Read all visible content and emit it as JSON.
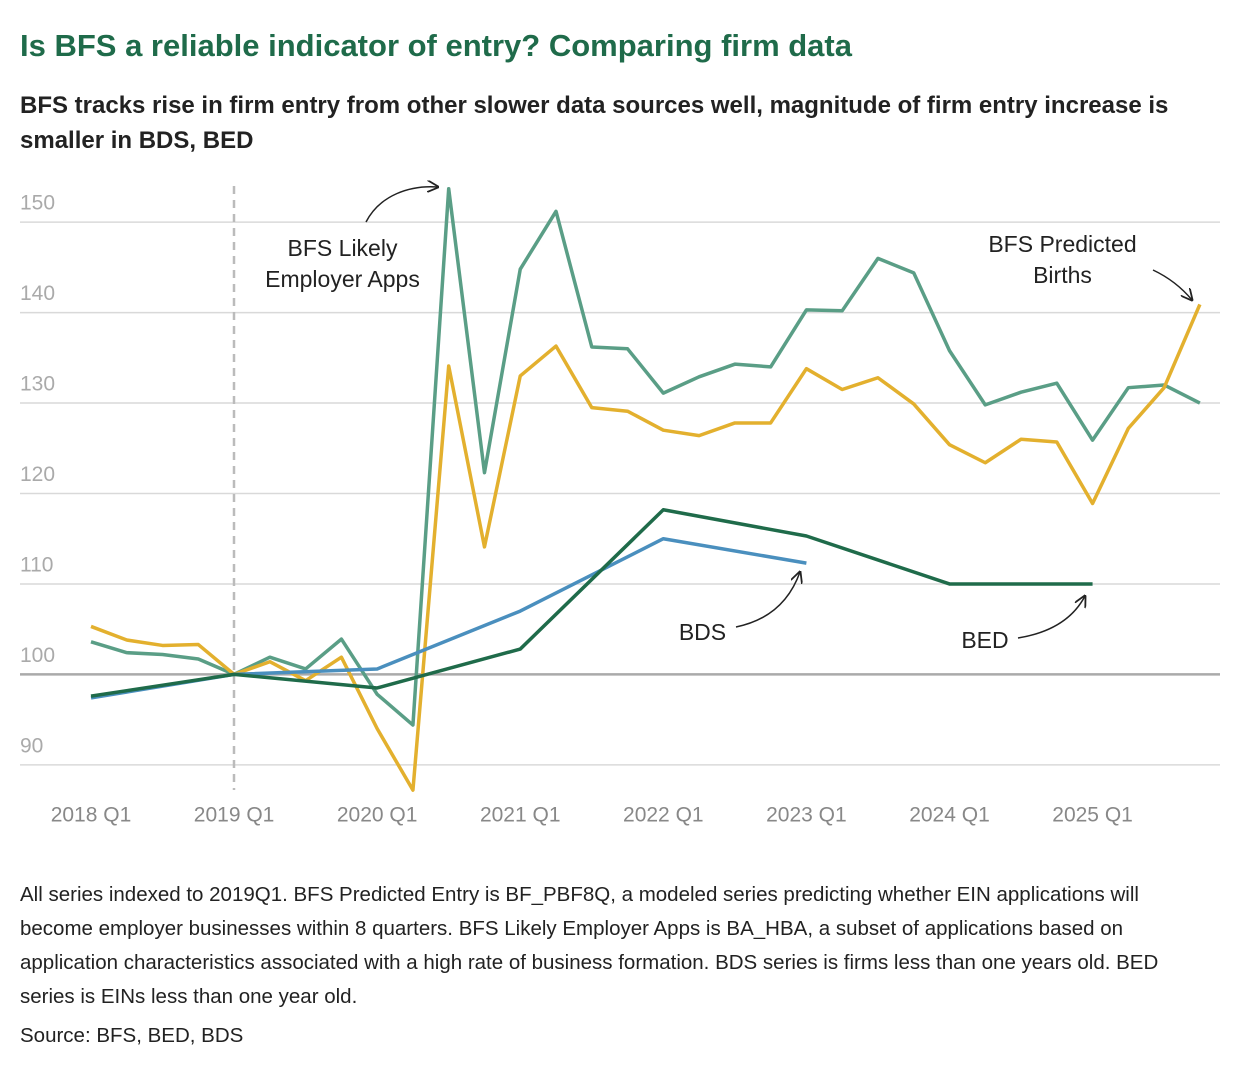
{
  "chart_data": {
    "type": "line",
    "title": "Is BFS a reliable indicator of entry? Comparing firm data",
    "subtitle": "BFS tracks rise in firm entry from other slower data sources well, magnitude of firm entry increase is smaller in BDS, BED",
    "note": "All series indexed to 2019Q1. BFS Predicted Entry is BF_PBF8Q, a modeled series predicting whether EIN applications will become employer businesses within 8 quarters. BFS Likely Employer Apps is BA_HBA, a subset of applications based on application characteristics associated with a high rate of business formation. BDS series is firms less than one years old. BED series is EINs less than one year old.",
    "source": "Source: BFS, BED, BDS",
    "categories": [
      "2018 Q1",
      null,
      null,
      null,
      "2019 Q1",
      null,
      null,
      null,
      "2020 Q1",
      null,
      null,
      null,
      "2021 Q1",
      null,
      null,
      null,
      "2022 Q1",
      null,
      null,
      null,
      "2023 Q1",
      null,
      null,
      null,
      "2024 Q1",
      null,
      null,
      null,
      "2025 Q1",
      null,
      null,
      null
    ],
    "ylim": [
      86,
      154
    ],
    "yticks": [
      90,
      100,
      110,
      120,
      130,
      140,
      150
    ],
    "grid": true,
    "series": [
      {
        "name": "BFS Likely Employer Apps",
        "color": "#5a9e86",
        "values": [
          103.6,
          102.4,
          102.2,
          101.7,
          100,
          101.9,
          100.6,
          103.9,
          97.8,
          94.4,
          153.7,
          122.3,
          144.8,
          151.2,
          136.2,
          136,
          131.1,
          132.9,
          134.3,
          134,
          140.3,
          140.2,
          146,
          144.4,
          135.8,
          129.8,
          131.2,
          132.2,
          125.9,
          131.7,
          132,
          130
        ]
      },
      {
        "name": "BFS Predicted Births",
        "color": "#e3b02e",
        "values": [
          105.3,
          103.8,
          103.2,
          103.3,
          100,
          101.4,
          99.3,
          101.9,
          94,
          87.2,
          134.1,
          114.1,
          133,
          136.3,
          129.5,
          129.1,
          127,
          126.4,
          127.8,
          127.8,
          133.8,
          131.5,
          132.8,
          129.9,
          125.4,
          123.4,
          126,
          125.7,
          118.9,
          127.2,
          131.7,
          140.9
        ]
      },
      {
        "name": "BDS",
        "color": "#4a8fbe",
        "values": [
          97.4,
          null,
          null,
          null,
          100,
          null,
          null,
          null,
          100.6,
          null,
          null,
          null,
          107,
          null,
          null,
          null,
          115,
          null,
          null,
          null,
          112.3,
          null,
          null,
          null,
          null,
          null,
          null,
          null,
          null,
          null,
          null,
          null
        ]
      },
      {
        "name": "BED",
        "color": "#1f6b4a",
        "values": [
          97.6,
          null,
          null,
          null,
          100,
          null,
          null,
          null,
          98.5,
          null,
          null,
          null,
          102.8,
          null,
          null,
          null,
          118.2,
          null,
          null,
          null,
          115.3,
          null,
          null,
          null,
          110,
          null,
          null,
          null,
          110,
          null,
          null,
          null
        ]
      }
    ]
  }
}
